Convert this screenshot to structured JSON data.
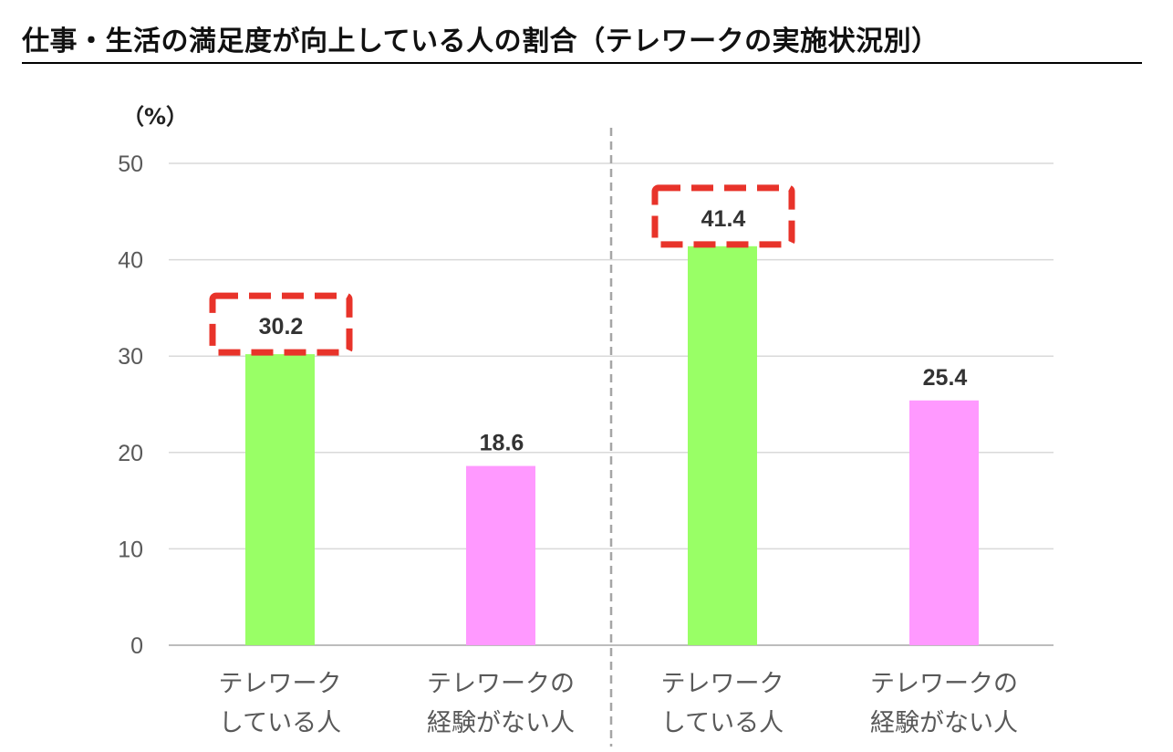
{
  "page_title": "仕事・生活の満足度が向上している人の割合（テレワークの実施状況別）",
  "chart_data": {
    "type": "bar",
    "title": "仕事・生活の満足度が向上している人の割合（テレワークの実施状況別）",
    "ylabel": "（%）",
    "ylim": [
      0,
      50
    ],
    "yticks": [
      0,
      10,
      20,
      30,
      40,
      50
    ],
    "grid": true,
    "categories": [
      [
        "テレワーク",
        "している人"
      ],
      [
        "テレワークの",
        "経験がない人"
      ],
      [
        "テレワーク",
        "している人"
      ],
      [
        "テレワークの",
        "経験がない人"
      ]
    ],
    "values": [
      30.2,
      18.6,
      41.4,
      25.4
    ],
    "value_labels": [
      "30.2",
      "18.6",
      "41.4",
      "25.4"
    ],
    "highlighted": [
      true,
      false,
      true,
      false
    ],
    "bar_colors": [
      "#99FF66",
      "#FF99FF",
      "#99FF66",
      "#FF99FF"
    ],
    "highlight_color": "#E8332A",
    "group_divider": "dashed vertical line between bar 2 and bar 3"
  }
}
